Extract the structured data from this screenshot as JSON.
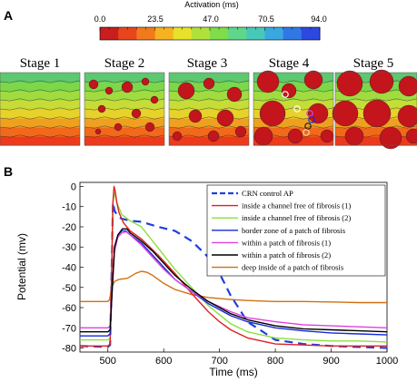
{
  "panels": {
    "a_letter": "A",
    "b_letter": "B"
  },
  "colorbar": {
    "title": "Activation (ms)",
    "ticks": [
      "0.0",
      "23.5",
      "47.0",
      "70.5",
      "94.0"
    ],
    "colors": [
      "#c81e1e",
      "#e8451c",
      "#f07a1c",
      "#f5b221",
      "#e6e22a",
      "#b2e03a",
      "#7fdc4a",
      "#5fd68a",
      "#48c8b8",
      "#3aa8e0",
      "#2f78e6",
      "#2c48e0"
    ]
  },
  "stages": [
    "Stage 1",
    "Stage 2",
    "Stage 3",
    "Stage 4",
    "Stage 5"
  ],
  "chart_data": {
    "type": "line",
    "xlabel": "Time (ms)",
    "ylabel": "Potential (mv)",
    "xlim": [
      450,
      1000
    ],
    "ylim": [
      -82,
      2
    ],
    "xticks": [
      500,
      600,
      700,
      800,
      900,
      1000
    ],
    "yticks": [
      0,
      -10,
      -20,
      -30,
      -40,
      -50,
      -60,
      -70,
      -80
    ],
    "series": [
      {
        "name": "CRN control AP",
        "color": "#1f3fe0",
        "dashed": true,
        "x": [
          450,
          500,
          504,
          507,
          509,
          512,
          518,
          525,
          540,
          560,
          590,
          620,
          650,
          680,
          700,
          720,
          750,
          800,
          850,
          900,
          950,
          1000
        ],
        "y": [
          -79,
          -79.5,
          -78.5,
          -40,
          -8,
          -12,
          -15,
          -16,
          -17,
          -17.5,
          -20,
          -22,
          -27,
          -35,
          -43,
          -54,
          -67,
          -76,
          -78,
          -79,
          -79.5,
          -80
        ]
      },
      {
        "name": "inside a channel free of fibrosis (1)",
        "color": "#e02020",
        "dashed": false,
        "x": [
          450,
          500,
          504,
          507,
          509,
          511,
          513,
          516,
          520,
          528,
          540,
          560,
          590,
          620,
          650,
          680,
          700,
          720,
          750,
          800,
          850,
          900,
          950,
          1000
        ],
        "y": [
          -79,
          -79,
          -78,
          -40,
          -8,
          0,
          -2,
          -8,
          -13,
          -18,
          -22,
          -26,
          -34,
          -43,
          -53,
          -62,
          -67,
          -71,
          -75,
          -78,
          -78.5,
          -79,
          -79,
          -79
        ]
      },
      {
        "name": "inside a channel free of fibrosis (2)",
        "color": "#8ae040",
        "dashed": false,
        "x": [
          450,
          500,
          504,
          507,
          509,
          512,
          516,
          525,
          540,
          560,
          580,
          600,
          620,
          650,
          680,
          720,
          750,
          800,
          850,
          900,
          950,
          1000
        ],
        "y": [
          -76,
          -76,
          -75,
          -40,
          -8,
          -3,
          -8,
          -14,
          -17,
          -20,
          -27,
          -34,
          -41,
          -50,
          -59,
          -68,
          -72,
          -75,
          -76,
          -76.5,
          -76.5,
          -77
        ]
      },
      {
        "name": "border zone of a patch of fibrosis",
        "color": "#1428d8",
        "dashed": false,
        "x": [
          450,
          500,
          504,
          508,
          512,
          518,
          525,
          532,
          540,
          560,
          580,
          600,
          620,
          650,
          680,
          720,
          750,
          800,
          850,
          900,
          950,
          1000
        ],
        "y": [
          -74,
          -74,
          -73,
          -50,
          -30,
          -24,
          -22,
          -22,
          -24,
          -28,
          -34,
          -40,
          -46,
          -52,
          -58,
          -64,
          -67,
          -70,
          -71.5,
          -72.5,
          -73,
          -73.5
        ]
      },
      {
        "name": "within a patch of fibrosis (1)",
        "color": "#e040e0",
        "dashed": false,
        "x": [
          450,
          500,
          504,
          508,
          512,
          518,
          525,
          533,
          540,
          560,
          580,
          600,
          620,
          650,
          680,
          720,
          750,
          800,
          850,
          900,
          950,
          1000
        ],
        "y": [
          -70,
          -70,
          -69,
          -50,
          -32,
          -25,
          -23,
          -22.5,
          -24,
          -29,
          -35,
          -41,
          -46,
          -52,
          -57,
          -62,
          -65,
          -67,
          -68.5,
          -69,
          -69.5,
          -70
        ]
      },
      {
        "name": "within a patch of fibrosis (2)",
        "color": "#000000",
        "dashed": false,
        "x": [
          450,
          500,
          504,
          508,
          512,
          518,
          526,
          534,
          540,
          560,
          580,
          600,
          620,
          650,
          680,
          720,
          750,
          800,
          850,
          900,
          950,
          1000
        ],
        "y": [
          -72,
          -72,
          -71,
          -50,
          -30,
          -24,
          -21,
          -21,
          -23,
          -27,
          -32,
          -38,
          -44,
          -51,
          -57,
          -63,
          -66,
          -69,
          -70.5,
          -71,
          -71.5,
          -72
        ]
      },
      {
        "name": "deep inside of a patch of fibrosis",
        "color": "#d07010",
        "dashed": false,
        "x": [
          450,
          500,
          503,
          507,
          512,
          520,
          535,
          550,
          560,
          570,
          580,
          600,
          620,
          650,
          680,
          720,
          750,
          800,
          850,
          900,
          950,
          1000
        ],
        "y": [
          -57,
          -57,
          -56,
          -50,
          -47,
          -46,
          -45.5,
          -43,
          -42,
          -42.5,
          -44,
          -48,
          -51,
          -53.5,
          -55,
          -56,
          -56.5,
          -57,
          -57,
          -57.2,
          -57.5,
          -57.5
        ]
      }
    ]
  }
}
